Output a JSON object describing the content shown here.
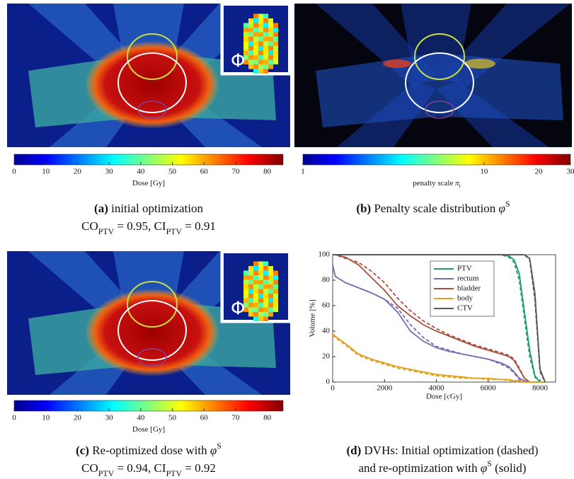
{
  "panels": [
    {
      "label": "(a)",
      "caption": [
        {
          "text": "initial optimization"
        }
      ],
      "metrics": [
        {
          "text": "CO"
        },
        {
          "text": "PTV",
          "sub": true
        },
        {
          "text": " = 0.95, CI"
        },
        {
          "text": "PTV",
          "sub": true
        },
        {
          "text": " = 0.91"
        }
      ],
      "inset_label": "Φ",
      "colorbar": {
        "lim": [
          0,
          85
        ],
        "log": false,
        "ticks": [
          0,
          10,
          20,
          30,
          40,
          50,
          60,
          70,
          80
        ],
        "label": [
          {
            "text": "Dose [Gy]"
          }
        ]
      }
    },
    {
      "label": "(b)",
      "caption": [
        {
          "text": "Penalty scale distribution "
        },
        {
          "text": "φ"
        },
        {
          "text": "S",
          "sup": true
        }
      ],
      "colorbar": {
        "lim": [
          1,
          30
        ],
        "log": true,
        "ticks": [
          1,
          10,
          20,
          30
        ],
        "label": [
          {
            "text": "penalty scale "
          },
          {
            "text": "π"
          },
          {
            "text": "i",
            "sub": true
          }
        ]
      }
    },
    {
      "label": "(c)",
      "caption": [
        {
          "text": "Re-optimized dose with "
        },
        {
          "text": "φ"
        },
        {
          "text": "S",
          "sup": true
        }
      ],
      "metrics": [
        {
          "text": "CO"
        },
        {
          "text": "PTV",
          "sub": true
        },
        {
          "text": " = 0.94, CI"
        },
        {
          "text": "PTV",
          "sub": true
        },
        {
          "text": " = 0.92"
        }
      ],
      "inset_label": "Φ",
      "colorbar": {
        "lim": [
          0,
          85
        ],
        "log": false,
        "ticks": [
          0,
          10,
          20,
          30,
          40,
          50,
          60,
          70,
          80
        ],
        "label": [
          {
            "text": "Dose [Gy]"
          }
        ]
      }
    },
    {
      "label": "(d)",
      "caption": [
        {
          "text": "DVHs: Initial optimization (dashed)"
        }
      ],
      "metrics": [
        {
          "text": "and re-optimization with "
        },
        {
          "text": "φ"
        },
        {
          "text": "S",
          "sup": true
        },
        {
          "text": " (solid)"
        }
      ]
    }
  ],
  "chart_data": {
    "type": "line",
    "xlabel": "Dose [cGy]",
    "ylabel": "Volume [%]",
    "x": [
      0,
      100,
      500,
      1000,
      1500,
      2000,
      2500,
      3000,
      3500,
      4000,
      4500,
      5000,
      5500,
      6000,
      6500,
      6800,
      7000,
      7200,
      7400,
      7600,
      7800,
      8000,
      8200
    ],
    "xlim": [
      0,
      8600
    ],
    "xticks": [
      0,
      2000,
      4000,
      6000,
      8000
    ],
    "ylim": [
      0,
      100
    ],
    "yticks": [
      0,
      20,
      40,
      60,
      80,
      100
    ],
    "series": [
      {
        "name": "PTV",
        "color": "#1f9e6e",
        "values": [
          100,
          100,
          100,
          100,
          100,
          100,
          100,
          100,
          100,
          100,
          100,
          100,
          100,
          100,
          100,
          99,
          96,
          85,
          55,
          25,
          5,
          0,
          0
        ],
        "dashed_values": [
          100,
          100,
          100,
          100,
          100,
          100,
          100,
          100,
          100,
          100,
          100,
          100,
          100,
          100,
          100,
          98,
          94,
          80,
          50,
          20,
          4,
          0,
          0
        ]
      },
      {
        "name": "rectum",
        "color": "#7b6cae",
        "values": [
          92,
          83,
          78,
          74,
          70,
          65,
          55,
          40,
          32,
          27,
          24,
          22,
          20,
          18,
          15,
          12,
          8,
          3,
          1,
          0,
          0,
          0,
          0
        ],
        "dashed_values": [
          92,
          83,
          78,
          74,
          70,
          65,
          58,
          45,
          35,
          28,
          25,
          22,
          20,
          18,
          14,
          11,
          7,
          2,
          0,
          0,
          0,
          0,
          0
        ]
      },
      {
        "name": "bladder",
        "color": "#a8503e",
        "values": [
          100,
          100,
          98,
          92,
          82,
          72,
          60,
          52,
          45,
          40,
          36,
          32,
          28,
          25,
          22,
          20,
          17,
          10,
          3,
          0,
          0,
          0,
          0
        ],
        "dashed_values": [
          100,
          100,
          97,
          94,
          87,
          78,
          66,
          56,
          48,
          42,
          37,
          33,
          29,
          26,
          23,
          21,
          18,
          11,
          3,
          0,
          0,
          0,
          0
        ]
      },
      {
        "name": "body",
        "color": "#e0a020",
        "values": [
          38,
          36,
          30,
          22,
          18,
          15,
          12,
          10,
          8,
          6,
          5,
          4,
          3,
          3,
          2,
          2,
          1,
          1,
          0,
          0,
          0,
          0,
          0
        ],
        "dashed_values": [
          37,
          35,
          29,
          21,
          17,
          14,
          11,
          9,
          7,
          5,
          4,
          3,
          3,
          2,
          2,
          1,
          1,
          0,
          0,
          0,
          0,
          0,
          0
        ]
      },
      {
        "name": "CTV",
        "color": "#555555",
        "values": [
          100,
          100,
          100,
          100,
          100,
          100,
          100,
          100,
          100,
          100,
          100,
          100,
          100,
          100,
          100,
          100,
          100,
          100,
          100,
          97,
          70,
          10,
          0
        ],
        "dashed_values": [
          100,
          100,
          100,
          100,
          100,
          100,
          100,
          100,
          100,
          100,
          100,
          100,
          100,
          100,
          100,
          100,
          100,
          100,
          100,
          96,
          65,
          8,
          0
        ]
      }
    ]
  }
}
